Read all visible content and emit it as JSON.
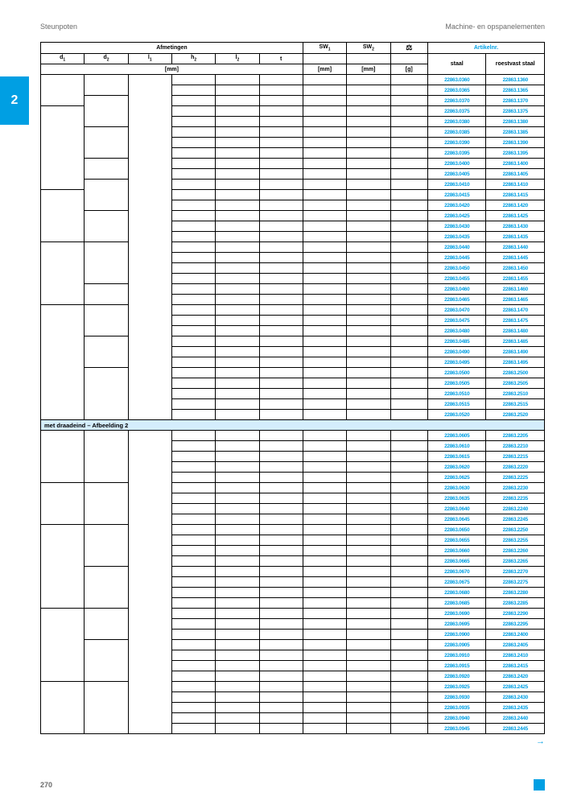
{
  "header": {
    "left": "Steunpoten",
    "right": "Machine- en opspanelementen"
  },
  "tab": "2",
  "columns": {
    "afmetingen": "Afmetingen",
    "sw1": "SW",
    "sw2": "SW",
    "weight_icon": "⚖",
    "artikelnr": "Artikelnr.",
    "d1": "d",
    "d2": "d",
    "l1": "l",
    "h2": "h",
    "l2": "l",
    "t": "t",
    "staal": "staal",
    "roestvast": "roestvast staal",
    "mm": "[mm]",
    "g": "[g]"
  },
  "section_label": "met draadeind – Afbeelding 2",
  "rows1": [
    [
      "22863.0360",
      "22863.1360"
    ],
    [
      "22863.0365",
      "22863.1365"
    ],
    [
      "22863.0370",
      "22863.1370"
    ],
    [
      "22863.0375",
      "22863.1375"
    ],
    [
      "22863.0380",
      "22863.1380"
    ],
    [
      "22863.0385",
      "22863.1385"
    ],
    [
      "22863.0390",
      "22863.1390"
    ],
    [
      "22863.0395",
      "22863.1395"
    ],
    [
      "22863.0400",
      "22863.1400"
    ],
    [
      "22863.0405",
      "22863.1405"
    ],
    [
      "22863.0410",
      "22863.1410"
    ],
    [
      "22863.0415",
      "22863.1415"
    ],
    [
      "22863.0420",
      "22863.1420"
    ],
    [
      "22863.0425",
      "22863.1425"
    ],
    [
      "22863.0430",
      "22863.1430"
    ],
    [
      "22863.0435",
      "22863.1435"
    ],
    [
      "22863.0440",
      "22863.1440"
    ],
    [
      "22863.0445",
      "22863.1445"
    ],
    [
      "22863.0450",
      "22863.1450"
    ],
    [
      "22863.0455",
      "22863.1455"
    ],
    [
      "22863.0460",
      "22863.1460"
    ],
    [
      "22863.0465",
      "22863.1465"
    ],
    [
      "22863.0470",
      "22863.1470"
    ],
    [
      "22863.0475",
      "22863.1475"
    ],
    [
      "22863.0480",
      "22863.1480"
    ],
    [
      "22863.0485",
      "22863.1485"
    ],
    [
      "22863.0490",
      "22863.1490"
    ],
    [
      "22863.0495",
      "22863.1495"
    ],
    [
      "22863.0500",
      "22863.2500"
    ],
    [
      "22863.0505",
      "22863.2505"
    ],
    [
      "22863.0510",
      "22863.2510"
    ],
    [
      "22863.0515",
      "22863.2515"
    ],
    [
      "22863.0520",
      "22863.2520"
    ]
  ],
  "rows2": [
    [
      "22863.0605",
      "22863.2205"
    ],
    [
      "22863.0610",
      "22863.2210"
    ],
    [
      "22863.0615",
      "22863.2215"
    ],
    [
      "22863.0620",
      "22863.2220"
    ],
    [
      "22863.0625",
      "22863.2225"
    ],
    [
      "22863.0630",
      "22863.2230"
    ],
    [
      "22863.0635",
      "22863.2235"
    ],
    [
      "22863.0640",
      "22863.2240"
    ],
    [
      "22863.0645",
      "22863.2245"
    ],
    [
      "22863.0650",
      "22863.2250"
    ],
    [
      "22863.0655",
      "22863.2255"
    ],
    [
      "22863.0660",
      "22863.2260"
    ],
    [
      "22863.0665",
      "22863.2265"
    ],
    [
      "22863.0670",
      "22863.2270"
    ],
    [
      "22863.0675",
      "22863.2275"
    ],
    [
      "22863.0680",
      "22863.2280"
    ],
    [
      "22863.0685",
      "22863.2285"
    ],
    [
      "22863.0690",
      "22863.2290"
    ],
    [
      "22863.0695",
      "22863.2295"
    ],
    [
      "22863.0900",
      "22863.2400"
    ],
    [
      "22863.0905",
      "22863.2405"
    ],
    [
      "22863.0910",
      "22863.2410"
    ],
    [
      "22863.0915",
      "22863.2415"
    ],
    [
      "22863.0920",
      "22863.2420"
    ],
    [
      "22863.0925",
      "22863.2425"
    ],
    [
      "22863.0930",
      "22863.2430"
    ],
    [
      "22863.0935",
      "22863.2435"
    ],
    [
      "22863.0940",
      "22863.2440"
    ],
    [
      "22863.0945",
      "22863.2445"
    ]
  ],
  "rowspans1": {
    "d1": [
      3,
      8,
      5,
      6,
      11
    ],
    "d2": [
      2,
      3,
      3,
      2,
      3,
      3,
      4,
      2,
      3,
      3,
      5
    ],
    "l1": [
      33
    ]
  },
  "rowspans2": {
    "d1": [
      5,
      4,
      8,
      7,
      5
    ],
    "d2": [
      5,
      4,
      4,
      4,
      3,
      4,
      5
    ],
    "l1": [
      29
    ]
  },
  "footer": {
    "page": "270",
    "arrow": "→"
  },
  "colors": {
    "accent": "#009fe3",
    "section_bg": "#d4edfc",
    "muted": "#6b6b6b"
  }
}
